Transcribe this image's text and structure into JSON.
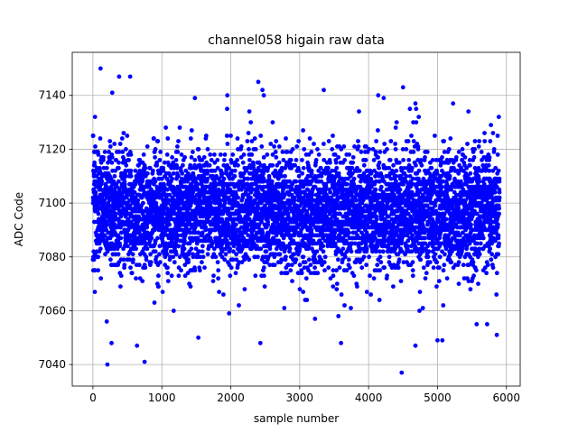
{
  "chart_data": {
    "type": "scatter",
    "title": "channel058 higain raw data",
    "xlabel": "sample number",
    "ylabel": "ADC Code",
    "xlim": [
      -300,
      6200
    ],
    "ylim": [
      7032,
      7156
    ],
    "x_ticks": [
      0,
      1000,
      2000,
      3000,
      4000,
      5000,
      6000
    ],
    "x_tick_labels": [
      "0",
      "1000",
      "2000",
      "3000",
      "4000",
      "5000",
      "6000"
    ],
    "y_ticks": [
      7040,
      7060,
      7080,
      7100,
      7120,
      7140
    ],
    "y_tick_labels": [
      "7040",
      "7060",
      "7080",
      "7100",
      "7120",
      "7140"
    ],
    "grid": true,
    "marker_color": "#0000ff",
    "series": [
      {
        "x_start": 0,
        "x_end": 5900,
        "n_points": 5900,
        "distribution": {
          "center": 7097,
          "spread": 11,
          "core_range": [
            7073,
            7118
          ],
          "min": 7037,
          "max": 7150
        },
        "outliers": [
          {
            "x": 110,
            "y": 7150
          },
          {
            "x": 540,
            "y": 7147
          },
          {
            "x": 380,
            "y": 7147
          },
          {
            "x": 2400,
            "y": 7145
          },
          {
            "x": 4500,
            "y": 7143
          },
          {
            "x": 2460,
            "y": 7142
          },
          {
            "x": 3350,
            "y": 7142
          },
          {
            "x": 280,
            "y": 7141
          },
          {
            "x": 2480,
            "y": 7140
          },
          {
            "x": 1950,
            "y": 7140
          },
          {
            "x": 1480,
            "y": 7139
          },
          {
            "x": 4220,
            "y": 7139
          },
          {
            "x": 2270,
            "y": 7134
          },
          {
            "x": 4600,
            "y": 7135
          },
          {
            "x": 4680,
            "y": 7137
          },
          {
            "x": 30,
            "y": 7132
          },
          {
            "x": 5890,
            "y": 7132
          },
          {
            "x": 210,
            "y": 7040
          },
          {
            "x": 750,
            "y": 7041
          },
          {
            "x": 4480,
            "y": 7037
          },
          {
            "x": 270,
            "y": 7048
          },
          {
            "x": 2430,
            "y": 7048
          },
          {
            "x": 3600,
            "y": 7048
          },
          {
            "x": 4680,
            "y": 7047
          },
          {
            "x": 640,
            "y": 7047
          },
          {
            "x": 5000,
            "y": 7049
          },
          {
            "x": 5070,
            "y": 7049
          },
          {
            "x": 5860,
            "y": 7051
          },
          {
            "x": 1530,
            "y": 7050
          },
          {
            "x": 200,
            "y": 7056
          },
          {
            "x": 5720,
            "y": 7055
          }
        ]
      }
    ]
  }
}
